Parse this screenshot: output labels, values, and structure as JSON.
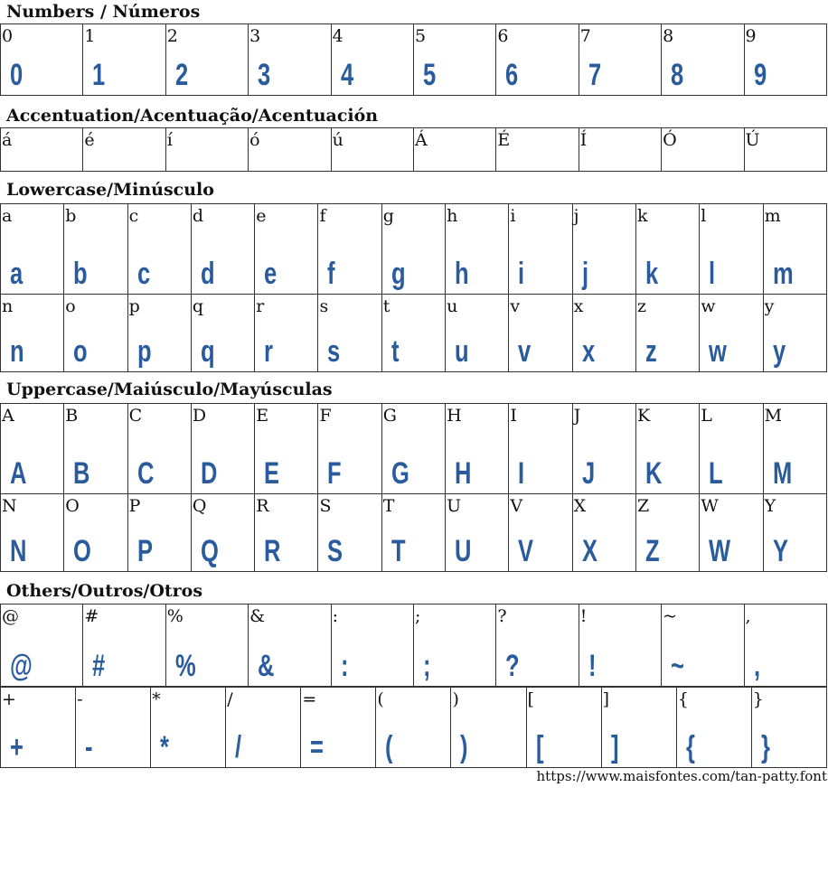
{
  "sections": [
    {
      "title": "Numbers / Números",
      "rows": [
        [
          "0",
          "1",
          "2",
          "3",
          "4",
          "5",
          "6",
          "7",
          "8",
          "9"
        ]
      ],
      "glyphs": true
    },
    {
      "title": "Accentuation/Acentuação/Acentuación",
      "rows": [
        [
          "á",
          "é",
          "í",
          "ó",
          "ú",
          "Á",
          "É",
          "Í",
          "Ó",
          "Ú"
        ]
      ],
      "glyphs": false
    },
    {
      "title": "Lowercase/Minúsculo",
      "rows": [
        [
          "a",
          "b",
          "c",
          "d",
          "e",
          "f",
          "g",
          "h",
          "i",
          "j",
          "k",
          "l",
          "m"
        ],
        [
          "n",
          "o",
          "p",
          "q",
          "r",
          "s",
          "t",
          "u",
          "v",
          "x",
          "z",
          "w",
          "y"
        ]
      ],
      "glyphs": true
    },
    {
      "title": "Uppercase/Maiúsculo/Mayúsculas",
      "rows": [
        [
          "A",
          "B",
          "C",
          "D",
          "E",
          "F",
          "G",
          "H",
          "I",
          "J",
          "K",
          "L",
          "M"
        ],
        [
          "N",
          "O",
          "P",
          "Q",
          "R",
          "S",
          "T",
          "U",
          "V",
          "X",
          "Z",
          "W",
          "Y"
        ]
      ],
      "glyphs": true
    },
    {
      "title": "Others/Outros/Otros",
      "rows": [
        [
          "@",
          "#",
          "%",
          "&",
          ":",
          ";",
          "?",
          "!",
          "~",
          ","
        ],
        [
          "+",
          "-",
          "*",
          "/",
          "=",
          "(",
          ")",
          "[",
          "]",
          "{",
          "}"
        ]
      ],
      "glyphs": true
    }
  ],
  "footer": {
    "url": "https://www.maisfontes.com/tan-patty.font"
  },
  "colors": {
    "glyph": "#2a5b9c"
  }
}
